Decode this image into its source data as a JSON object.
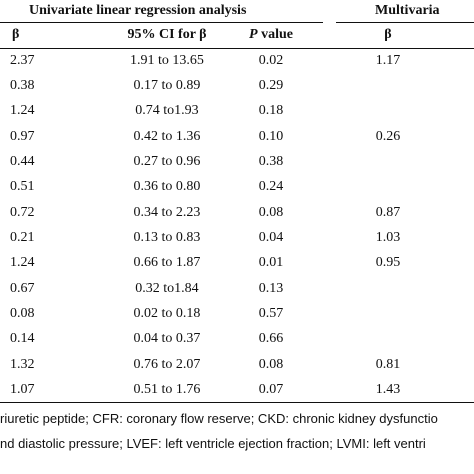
{
  "header": {
    "univariate_title": "Univariate linear regression analysis",
    "multivariate_title": "Multivaria",
    "col_beta": "β",
    "col_ci": "95% CI for β",
    "col_p_italic": "P",
    "col_p_rest": " value",
    "col_multi_beta": "β"
  },
  "rows": [
    {
      "beta": "2.37",
      "ci": "1.91 to 13.65",
      "p": "0.02",
      "mbeta": "1.17"
    },
    {
      "beta": "0.38",
      "ci": "0.17 to 0.89",
      "p": "0.29",
      "mbeta": ""
    },
    {
      "beta": "1.24",
      "ci": "0.74 to1.93",
      "p": "0.18",
      "mbeta": ""
    },
    {
      "beta": "0.97",
      "ci": "0.42 to 1.36",
      "p": "0.10",
      "mbeta": "0.26"
    },
    {
      "beta": "0.44",
      "ci": "0.27 to 0.96",
      "p": "0.38",
      "mbeta": ""
    },
    {
      "beta": "0.51",
      "ci": "0.36 to 0.80",
      "p": "0.24",
      "mbeta": ""
    },
    {
      "beta": "0.72",
      "ci": "0.34 to 2.23",
      "p": "0.08",
      "mbeta": "0.87"
    },
    {
      "beta": "0.21",
      "ci": "0.13 to 0.83",
      "p": "0.04",
      "mbeta": "1.03"
    },
    {
      "beta": "1.24",
      "ci": "0.66 to 1.87",
      "p": "0.01",
      "mbeta": "0.95"
    },
    {
      "beta": "0.67",
      "ci": "0.32 to1.84",
      "p": "0.13",
      "mbeta": ""
    },
    {
      "beta": "0.08",
      "ci": "0.02 to 0.18",
      "p": "0.57",
      "mbeta": ""
    },
    {
      "beta": "0.14",
      "ci": "0.04 to 0.37",
      "p": "0.66",
      "mbeta": ""
    },
    {
      "beta": "1.32",
      "ci": "0.76 to 2.07",
      "p": "0.08",
      "mbeta": "0.81"
    },
    {
      "beta": "1.07",
      "ci": "0.51 to 1.76",
      "p": "0.07",
      "mbeta": "1.43"
    }
  ],
  "footnotes": {
    "line1": "riuretic peptide; CFR: coronary flow reserve; CKD: chronic kidney dysfunctio",
    "line2": "nd diastolic pressure; LVEF: left ventricle ejection fraction; LVMI: left ventri"
  }
}
